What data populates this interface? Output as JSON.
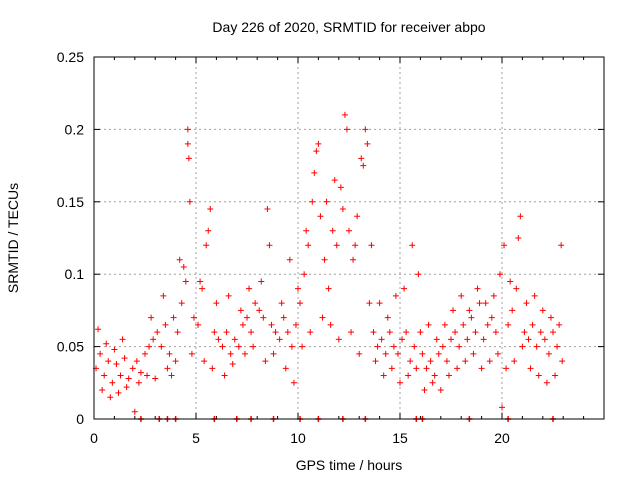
{
  "chart_data": {
    "type": "scatter",
    "title": "Day 226 of 2020, SRMTID for receiver abpo",
    "xlabel": "GPS time / hours",
    "ylabel": "SRMTID / TECUs",
    "xlim": [
      0,
      25
    ],
    "ylim": [
      0,
      0.25
    ],
    "xticks": [
      0,
      5,
      10,
      15,
      20
    ],
    "xtick_labels": [
      "0",
      "5",
      "10",
      "15",
      "20"
    ],
    "yticks": [
      0,
      0.05,
      0.1,
      0.15,
      0.2,
      0.25
    ],
    "ytick_labels": [
      "0",
      "0.05",
      "0.1",
      "0.15",
      "0.2",
      "0.25"
    ],
    "grid": true,
    "marker": "+",
    "color": "#ff0000",
    "series": [
      {
        "name": "SRMTID",
        "points": [
          [
            0.1,
            0.035
          ],
          [
            0.3,
            0.045
          ],
          [
            0.5,
            0.03
          ],
          [
            0.7,
            0.04
          ],
          [
            0.9,
            0.025
          ],
          [
            1.1,
            0.038
          ],
          [
            1.3,
            0.03
          ],
          [
            1.5,
            0.042
          ],
          [
            1.7,
            0.028
          ],
          [
            1.9,
            0.035
          ],
          [
            2.1,
            0.04
          ],
          [
            2.3,
            0.032
          ],
          [
            2.5,
            0.045
          ],
          [
            2.7,
            0.05
          ],
          [
            2.9,
            0.055
          ],
          [
            3.1,
            0.06
          ],
          [
            3.3,
            0.05
          ],
          [
            3.5,
            0.065
          ],
          [
            3.7,
            0.045
          ],
          [
            3.9,
            0.07
          ],
          [
            4.1,
            0.06
          ],
          [
            4.3,
            0.08
          ],
          [
            4.5,
            0.095
          ],
          [
            4.6,
            0.2
          ],
          [
            4.7,
            0.15
          ],
          [
            4.9,
            0.07
          ],
          [
            5.1,
            0.065
          ],
          [
            5.3,
            0.09
          ],
          [
            5.5,
            0.12
          ],
          [
            5.7,
            0.145
          ],
          [
            5.9,
            0.06
          ],
          [
            6.1,
            0.055
          ],
          [
            6.3,
            0.05
          ],
          [
            6.5,
            0.06
          ],
          [
            6.7,
            0.045
          ],
          [
            6.9,
            0.055
          ],
          [
            7.1,
            0.05
          ],
          [
            7.3,
            0.065
          ],
          [
            7.5,
            0.07
          ],
          [
            7.7,
            0.06
          ],
          [
            7.9,
            0.08
          ],
          [
            8.1,
            0.075
          ],
          [
            8.3,
            0.07
          ],
          [
            8.5,
            0.145
          ],
          [
            8.7,
            0.065
          ],
          [
            8.9,
            0.06
          ],
          [
            9.1,
            0.055
          ],
          [
            9.3,
            0.07
          ],
          [
            9.5,
            0.06
          ],
          [
            9.7,
            0.05
          ],
          [
            9.9,
            0.065
          ],
          [
            10.1,
            0.08
          ],
          [
            10.3,
            0.1
          ],
          [
            10.5,
            0.12
          ],
          [
            10.7,
            0.15
          ],
          [
            10.9,
            0.185
          ],
          [
            11.1,
            0.14
          ],
          [
            11.3,
            0.11
          ],
          [
            11.5,
            0.09
          ],
          [
            11.7,
            0.13
          ],
          [
            11.9,
            0.12
          ],
          [
            12.1,
            0.16
          ],
          [
            12.3,
            0.21
          ],
          [
            12.5,
            0.13
          ],
          [
            12.7,
            0.11
          ],
          [
            12.9,
            0.14
          ],
          [
            13.1,
            0.18
          ],
          [
            13.3,
            0.2
          ],
          [
            13.5,
            0.08
          ],
          [
            13.7,
            0.06
          ],
          [
            13.9,
            0.05
          ],
          [
            14.1,
            0.055
          ],
          [
            14.3,
            0.045
          ],
          [
            14.5,
            0.06
          ],
          [
            14.7,
            0.05
          ],
          [
            14.9,
            0.045
          ],
          [
            15.1,
            0.055
          ],
          [
            15.3,
            0.06
          ],
          [
            15.5,
            0.04
          ],
          [
            15.7,
            0.05
          ],
          [
            15.9,
            0.1
          ],
          [
            16.1,
            0.045
          ],
          [
            16.3,
            0.035
          ],
          [
            16.5,
            0.04
          ],
          [
            16.7,
            0.03
          ],
          [
            16.9,
            0.045
          ],
          [
            17.1,
            0.05
          ],
          [
            17.3,
            0.04
          ],
          [
            17.5,
            0.055
          ],
          [
            17.7,
            0.06
          ],
          [
            17.9,
            0.05
          ],
          [
            18.1,
            0.065
          ],
          [
            18.3,
            0.055
          ],
          [
            18.5,
            0.07
          ],
          [
            18.7,
            0.06
          ],
          [
            18.9,
            0.08
          ],
          [
            19.1,
            0.055
          ],
          [
            19.3,
            0.065
          ],
          [
            19.5,
            0.07
          ],
          [
            19.7,
            0.06
          ],
          [
            19.9,
            0.1
          ],
          [
            20.1,
            0.12
          ],
          [
            20.3,
            0.065
          ],
          [
            20.5,
            0.075
          ],
          [
            20.7,
            0.09
          ],
          [
            20.9,
            0.14
          ],
          [
            21.1,
            0.06
          ],
          [
            21.3,
            0.055
          ],
          [
            21.5,
            0.065
          ],
          [
            21.7,
            0.05
          ],
          [
            21.9,
            0.06
          ],
          [
            22.1,
            0.055
          ],
          [
            22.3,
            0.045
          ],
          [
            22.5,
            0.06
          ],
          [
            22.7,
            0.05
          ],
          [
            22.9,
            0.12
          ],
          [
            0.2,
            0.062
          ],
          [
            0.6,
            0.052
          ],
          [
            1.0,
            0.048
          ],
          [
            1.4,
            0.055
          ],
          [
            2.0,
            0.005
          ],
          [
            2.8,
            0.07
          ],
          [
            3.4,
            0.085
          ],
          [
            3.8,
            0.03
          ],
          [
            4.2,
            0.11
          ],
          [
            4.4,
            0.105
          ],
          [
            4.6,
            0.19
          ],
          [
            4.65,
            0.18
          ],
          [
            5.2,
            0.095
          ],
          [
            5.6,
            0.13
          ],
          [
            6.0,
            0.08
          ],
          [
            6.6,
            0.085
          ],
          [
            7.2,
            0.075
          ],
          [
            7.6,
            0.09
          ],
          [
            8.2,
            0.095
          ],
          [
            8.6,
            0.12
          ],
          [
            9.2,
            0.08
          ],
          [
            9.6,
            0.11
          ],
          [
            10.0,
            0.09
          ],
          [
            10.4,
            0.13
          ],
          [
            10.8,
            0.17
          ],
          [
            11.0,
            0.19
          ],
          [
            11.4,
            0.15
          ],
          [
            11.8,
            0.165
          ],
          [
            12.2,
            0.145
          ],
          [
            12.4,
            0.2
          ],
          [
            12.8,
            0.12
          ],
          [
            13.2,
            0.175
          ],
          [
            13.4,
            0.19
          ],
          [
            13.6,
            0.12
          ],
          [
            14.0,
            0.08
          ],
          [
            14.4,
            0.07
          ],
          [
            14.8,
            0.085
          ],
          [
            15.2,
            0.09
          ],
          [
            15.6,
            0.12
          ],
          [
            16.0,
            0.06
          ],
          [
            16.4,
            0.065
          ],
          [
            16.8,
            0.055
          ],
          [
            17.2,
            0.065
          ],
          [
            17.6,
            0.075
          ],
          [
            18.0,
            0.085
          ],
          [
            18.4,
            0.075
          ],
          [
            18.8,
            0.09
          ],
          [
            19.2,
            0.08
          ],
          [
            19.6,
            0.085
          ],
          [
            20.0,
            0.008
          ],
          [
            20.4,
            0.095
          ],
          [
            20.8,
            0.125
          ],
          [
            21.2,
            0.08
          ],
          [
            21.6,
            0.085
          ],
          [
            22.0,
            0.075
          ],
          [
            22.4,
            0.07
          ],
          [
            22.8,
            0.065
          ],
          [
            0.4,
            0.02
          ],
          [
            0.8,
            0.015
          ],
          [
            1.2,
            0.018
          ],
          [
            1.6,
            0.022
          ],
          [
            2.2,
            0.025
          ],
          [
            2.6,
            0.03
          ],
          [
            3.0,
            0.028
          ],
          [
            3.6,
            0.035
          ],
          [
            4.0,
            0.04
          ],
          [
            4.8,
            0.045
          ],
          [
            5.4,
            0.04
          ],
          [
            5.8,
            0.035
          ],
          [
            6.4,
            0.03
          ],
          [
            6.8,
            0.038
          ],
          [
            7.4,
            0.045
          ],
          [
            7.8,
            0.05
          ],
          [
            8.4,
            0.04
          ],
          [
            8.8,
            0.045
          ],
          [
            9.4,
            0.035
          ],
          [
            9.8,
            0.025
          ],
          [
            10.2,
            0.05
          ],
          [
            10.6,
            0.06
          ],
          [
            11.2,
            0.07
          ],
          [
            11.6,
            0.065
          ],
          [
            12.0,
            0.055
          ],
          [
            12.6,
            0.06
          ],
          [
            13.0,
            0.045
          ],
          [
            13.8,
            0.04
          ],
          [
            14.2,
            0.03
          ],
          [
            14.6,
            0.035
          ],
          [
            15.0,
            0.025
          ],
          [
            15.4,
            0.03
          ],
          [
            15.8,
            0.035
          ],
          [
            16.2,
            0.02
          ],
          [
            16.6,
            0.025
          ],
          [
            17.0,
            0.02
          ],
          [
            17.4,
            0.03
          ],
          [
            17.8,
            0.035
          ],
          [
            18.2,
            0.04
          ],
          [
            18.6,
            0.045
          ],
          [
            19.0,
            0.035
          ],
          [
            19.4,
            0.04
          ],
          [
            19.8,
            0.045
          ],
          [
            20.2,
            0.035
          ],
          [
            20.6,
            0.04
          ],
          [
            21.0,
            0.05
          ],
          [
            21.4,
            0.035
          ],
          [
            21.8,
            0.03
          ],
          [
            22.2,
            0.025
          ],
          [
            22.6,
            0.03
          ],
          [
            22.95,
            0.04
          ]
        ]
      }
    ],
    "zero_markers": [
      2.3,
      3.2,
      3.6,
      4.0,
      5.9,
      7.0,
      7.7,
      8.8,
      10.1,
      11.0,
      12.2,
      13.3,
      15.8,
      16.1,
      18.4,
      20.3,
      22.5
    ]
  }
}
